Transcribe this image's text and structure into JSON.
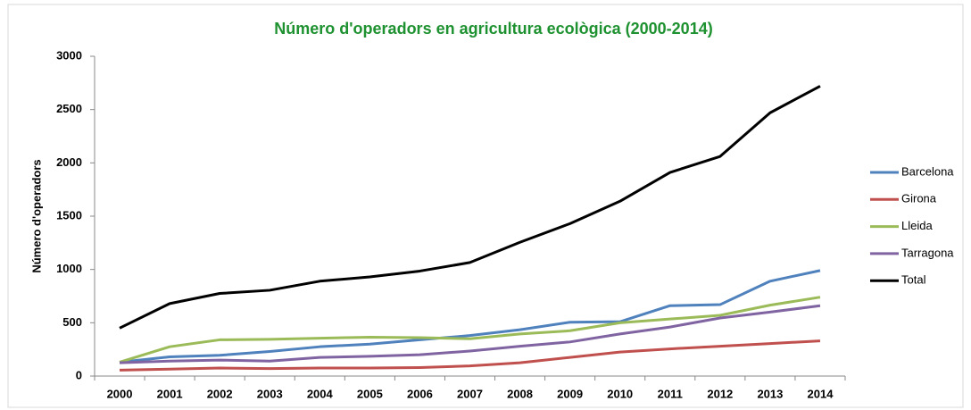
{
  "chart_data": {
    "type": "line",
    "title": "Número d'operadors en agricultura ecològica (2000-2014)",
    "y_label": "Número d'operadors",
    "categories": [
      "2000",
      "2001",
      "2002",
      "2003",
      "2004",
      "2005",
      "2006",
      "2007",
      "2008",
      "2009",
      "2010",
      "2011",
      "2012",
      "2013",
      "2014"
    ],
    "series": [
      {
        "name": "Barcelona",
        "color": "#4f81bd",
        "values": [
          130,
          180,
          195,
          230,
          275,
          300,
          340,
          380,
          435,
          505,
          510,
          660,
          670,
          890,
          990
        ]
      },
      {
        "name": "Girona",
        "color": "#c0504d",
        "values": [
          55,
          65,
          75,
          70,
          75,
          75,
          80,
          95,
          125,
          175,
          225,
          255,
          280,
          305,
          330
        ]
      },
      {
        "name": "Lleida",
        "color": "#9bbb59",
        "values": [
          130,
          275,
          340,
          345,
          355,
          365,
          360,
          350,
          395,
          425,
          500,
          535,
          570,
          665,
          740
        ]
      },
      {
        "name": "Tarragona",
        "color": "#8064a2",
        "values": [
          125,
          140,
          150,
          140,
          175,
          185,
          200,
          235,
          280,
          320,
          395,
          460,
          545,
          600,
          660
        ]
      },
      {
        "name": "Total",
        "color": "#000000",
        "values": [
          450,
          680,
          775,
          805,
          890,
          930,
          985,
          1065,
          1255,
          1430,
          1640,
          1910,
          2060,
          2470,
          2720
        ]
      }
    ],
    "ylim": [
      0,
      3000
    ],
    "yticks": [
      0,
      500,
      1000,
      1500,
      2000,
      2500,
      3000
    ],
    "grid": false,
    "legend": "right",
    "title_color": "#1e9130"
  }
}
